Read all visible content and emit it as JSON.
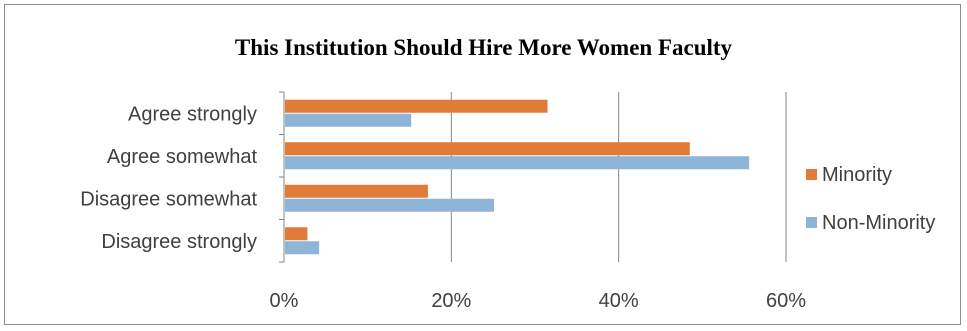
{
  "chart_data": {
    "type": "bar",
    "orientation": "horizontal",
    "title": "This Institution Should Hire More Women Faculty",
    "categories": [
      "Agree strongly",
      "Agree somewhat",
      "Disagree somewhat",
      "Disagree strongly"
    ],
    "series": [
      {
        "name": "Minority",
        "color": "#e07b39",
        "values": [
          31.5,
          48.5,
          17.2,
          2.8
        ]
      },
      {
        "name": "Non-Minority",
        "color": "#8eb4d8",
        "values": [
          15.2,
          55.6,
          25.1,
          4.2
        ]
      }
    ],
    "xlim": [
      0,
      60
    ],
    "xticks": [
      0,
      20,
      40,
      60
    ],
    "xtick_labels": [
      "0%",
      "20%",
      "40%",
      "60%"
    ],
    "grid": "vertical",
    "legend_position": "right"
  }
}
